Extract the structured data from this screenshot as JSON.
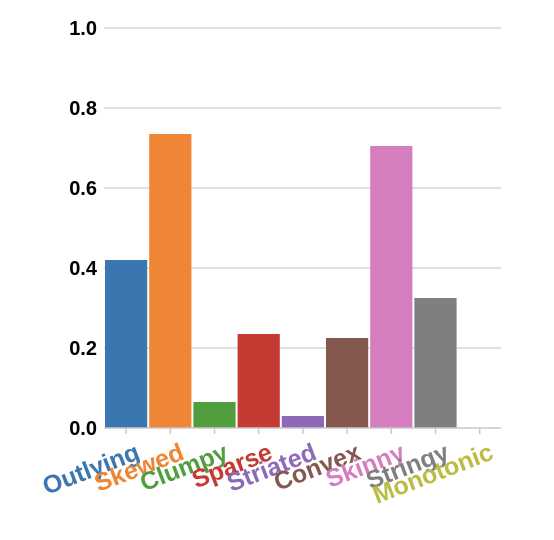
{
  "chart_data": {
    "type": "bar",
    "title": "",
    "xlabel": "",
    "ylabel": "",
    "ylim": [
      0,
      1.0
    ],
    "y_ticks": [
      "0.0",
      "0.2",
      "0.4",
      "0.6",
      "0.8",
      "1.0"
    ],
    "grid": true,
    "categories": [
      "Outlying",
      "Skewed",
      "Clumpy",
      "Sparse",
      "Striated",
      "Convex",
      "Skinny",
      "Stringy",
      "Monotonic"
    ],
    "values": [
      0.42,
      0.735,
      0.065,
      0.235,
      0.03,
      0.225,
      0.705,
      0.325,
      0.0
    ],
    "colors": [
      "#3a76af",
      "#ef8636",
      "#519e3e",
      "#c53a32",
      "#8d69b8",
      "#84584e",
      "#d57dbf",
      "#7f7f7f",
      "#bcbc45"
    ]
  }
}
